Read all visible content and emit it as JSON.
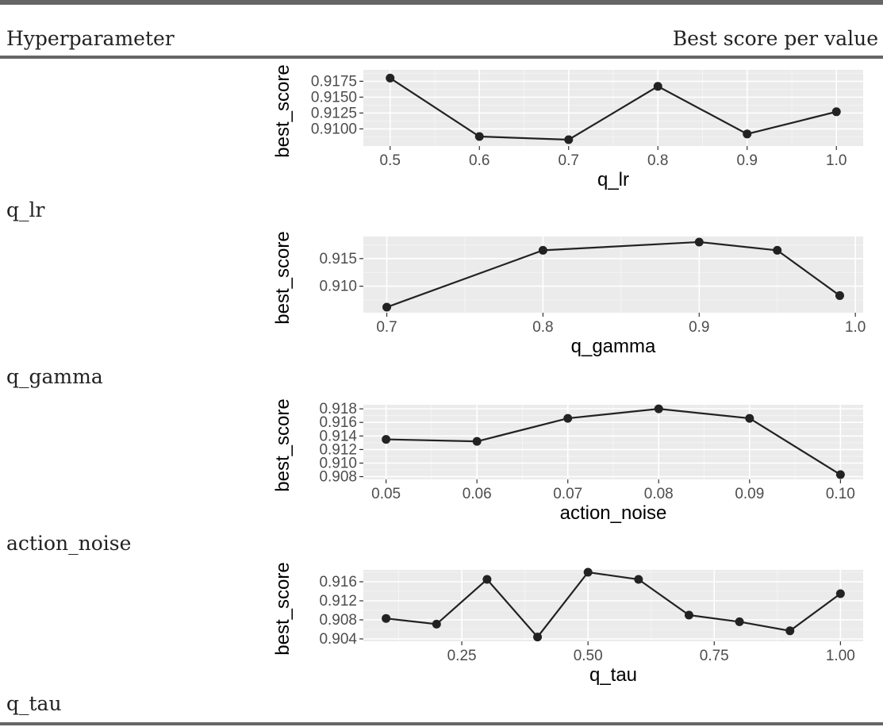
{
  "table": {
    "col_header_left": "Hyperparameter",
    "col_header_right": "Best score per value",
    "rows": [
      "q_lr",
      "q_gamma",
      "action_noise",
      "q_tau"
    ]
  },
  "chart_data": [
    {
      "type": "line",
      "xlabel": "q_lr",
      "ylabel": "best_score",
      "x": [
        0.5,
        0.6,
        0.7,
        0.8,
        0.9,
        1.0
      ],
      "y": [
        0.918,
        0.9088,
        0.9083,
        0.9167,
        0.9092,
        0.9127
      ],
      "xlim": [
        0.47,
        1.03
      ],
      "ylim": [
        0.9073,
        0.9193
      ],
      "xticks": [
        0.5,
        0.6,
        0.7,
        0.8,
        0.9,
        1.0
      ],
      "xtick_labels": [
        "0.5",
        "0.6",
        "0.7",
        "0.8",
        "0.9",
        "1.0"
      ],
      "yticks": [
        0.91,
        0.9125,
        0.915,
        0.9175
      ],
      "ytick_labels": [
        "0.9100",
        "0.9125",
        "0.9150",
        "0.9175"
      ],
      "grid": true
    },
    {
      "type": "line",
      "xlabel": "q_gamma",
      "ylabel": "best_score",
      "x": [
        0.7,
        0.8,
        0.9,
        0.95,
        0.99
      ],
      "y": [
        0.9062,
        0.9165,
        0.918,
        0.9165,
        0.9083
      ],
      "xlim": [
        0.685,
        1.005
      ],
      "ylim": [
        0.9052,
        0.919
      ],
      "xticks": [
        0.7,
        0.8,
        0.9,
        1.0
      ],
      "xtick_labels": [
        "0.7",
        "0.8",
        "0.9",
        "1.0"
      ],
      "yticks": [
        0.91,
        0.915
      ],
      "ytick_labels": [
        "0.910",
        "0.915"
      ],
      "grid": true
    },
    {
      "type": "line",
      "xlabel": "action_noise",
      "ylabel": "best_score",
      "x": [
        0.05,
        0.06,
        0.07,
        0.08,
        0.09,
        0.1
      ],
      "y": [
        0.9135,
        0.9132,
        0.9166,
        0.918,
        0.9166,
        0.9083
      ],
      "xlim": [
        0.0475,
        0.1025
      ],
      "ylim": [
        0.9076,
        0.9186
      ],
      "xticks": [
        0.05,
        0.06,
        0.07,
        0.08,
        0.09,
        0.1
      ],
      "xtick_labels": [
        "0.05",
        "0.06",
        "0.07",
        "0.08",
        "0.09",
        "0.10"
      ],
      "yticks": [
        0.908,
        0.91,
        0.912,
        0.914,
        0.916,
        0.918
      ],
      "ytick_labels": [
        "0.908",
        "0.910",
        "0.912",
        "0.914",
        "0.916",
        "0.918"
      ],
      "grid": true
    },
    {
      "type": "line",
      "xlabel": "q_tau",
      "ylabel": "best_score",
      "x": [
        0.1,
        0.2,
        0.3,
        0.4,
        0.5,
        0.6,
        0.7,
        0.8,
        0.9,
        1.0
      ],
      "y": [
        0.9083,
        0.9071,
        0.9165,
        0.9044,
        0.918,
        0.9165,
        0.909,
        0.9076,
        0.9057,
        0.9135
      ],
      "xlim": [
        0.055,
        1.045
      ],
      "ylim": [
        0.9035,
        0.9185
      ],
      "xticks": [
        0.25,
        0.5,
        0.75,
        1.0
      ],
      "xtick_labels": [
        "0.25",
        "0.50",
        "0.75",
        "1.00"
      ],
      "yticks": [
        0.904,
        0.908,
        0.912,
        0.916
      ],
      "ytick_labels": [
        "0.904",
        "0.908",
        "0.912",
        "0.916"
      ],
      "grid": true
    }
  ]
}
